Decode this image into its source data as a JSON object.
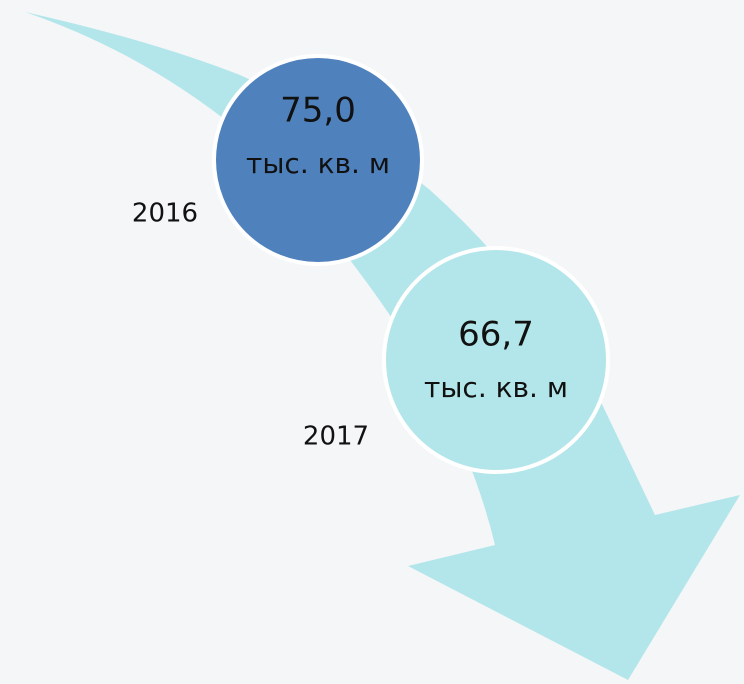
{
  "nodes": [
    {
      "value": "75,0",
      "unit": "тыс. кв. м",
      "year": "2016"
    },
    {
      "value": "66,7",
      "unit": "тыс. кв. м",
      "year": "2017"
    }
  ]
}
